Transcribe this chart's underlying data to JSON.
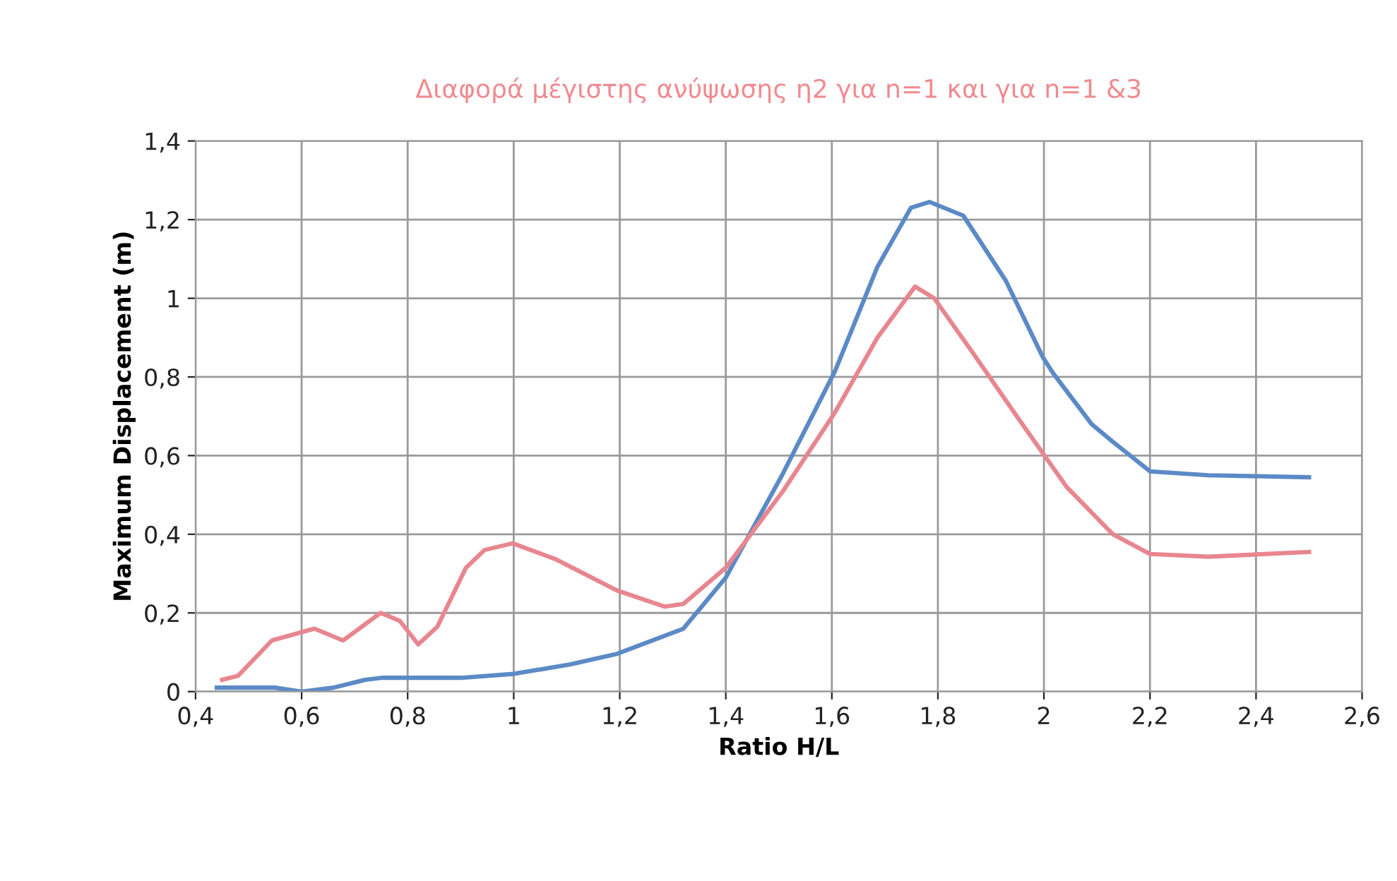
{
  "chart_data": {
    "type": "line",
    "title": "Διαφορά μέγιστης ανύψωσης η2 για n=1 και για n=1 &3",
    "xlabel": "Ratio H/L",
    "ylabel": "Maximum Displacement (m)",
    "xlim": [
      0.4,
      2.6
    ],
    "ylim": [
      0,
      1.4
    ],
    "xticks": [
      {
        "value": 0.4,
        "label": "0,4"
      },
      {
        "value": 0.6,
        "label": "0,6"
      },
      {
        "value": 0.8,
        "label": "0,8"
      },
      1,
      {
        "value": 1.2,
        "label": "1,2"
      },
      {
        "value": 1.4,
        "label": "1,4"
      },
      {
        "value": 1.6,
        "label": "1,6"
      },
      {
        "value": 1.8,
        "label": "1,8"
      },
      2,
      {
        "value": 2.2,
        "label": "2,2"
      },
      {
        "value": 2.4,
        "label": "2,4"
      },
      {
        "value": 2.6,
        "label": "2,6"
      }
    ],
    "yticks": [
      0,
      {
        "value": 0.2,
        "label": "0,2"
      },
      {
        "value": 0.4,
        "label": "0,4"
      },
      {
        "value": 0.6,
        "label": "0,6"
      },
      {
        "value": 0.8,
        "label": "0,8"
      },
      1,
      {
        "value": 1.2,
        "label": "1,2"
      },
      {
        "value": 1.4,
        "label": "1,4"
      }
    ],
    "grid": true,
    "legend": false,
    "line_style": "solid",
    "series": [
      {
        "color": "#5b8ac6",
        "x": [
          0.44,
          0.55,
          0.6,
          0.66,
          0.72,
          0.75,
          0.85,
          0.9,
          1.0,
          1.106,
          1.195,
          1.32,
          1.4,
          1.508,
          1.606,
          1.686,
          1.749,
          1.784,
          1.848,
          1.928,
          1.998,
          2.017,
          2.09,
          2.13,
          2.2,
          2.31,
          2.5
        ],
        "values": [
          0.01,
          0.01,
          0.0,
          0.01,
          0.03,
          0.035,
          0.035,
          0.035,
          0.045,
          0.069,
          0.096,
          0.16,
          0.29,
          0.555,
          0.815,
          1.08,
          1.23,
          1.245,
          1.21,
          1.045,
          0.85,
          0.81,
          0.68,
          0.635,
          0.56,
          0.55,
          0.545
        ]
      },
      {
        "color": "#e8868f",
        "x": [
          0.45,
          0.48,
          0.544,
          0.624,
          0.678,
          0.749,
          0.785,
          0.82,
          0.856,
          0.91,
          0.945,
          0.998,
          1.08,
          1.195,
          1.285,
          1.32,
          1.4,
          1.508,
          1.606,
          1.686,
          1.757,
          1.793,
          1.864,
          1.954,
          2.043,
          2.13,
          2.2,
          2.31,
          2.5
        ],
        "values": [
          0.03,
          0.04,
          0.13,
          0.16,
          0.13,
          0.2,
          0.18,
          0.12,
          0.165,
          0.315,
          0.36,
          0.377,
          0.336,
          0.257,
          0.216,
          0.223,
          0.315,
          0.51,
          0.71,
          0.9,
          1.03,
          1.0,
          0.865,
          0.69,
          0.52,
          0.4,
          0.35,
          0.343,
          0.355
        ]
      }
    ]
  }
}
